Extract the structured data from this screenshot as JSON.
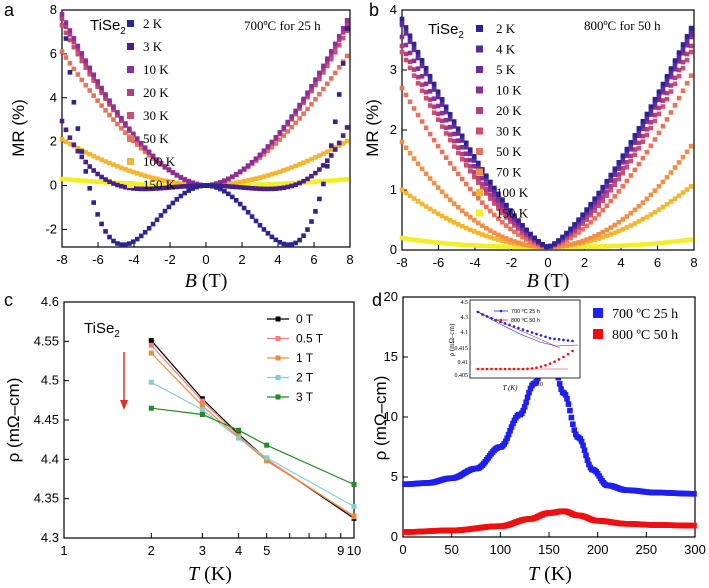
{
  "colors": {
    "mr_2K": "#2b2494",
    "mr_3K": "#4b1f8a",
    "mr_4K": "#5a2a97",
    "mr_5K": "#6b2a9e",
    "mr_10K": "#8c2e9a",
    "mr_20K": "#b23d7f",
    "mr_30K": "#cf4e6c",
    "mr_50K": "#e8735a",
    "mr_70K": "#f28e45",
    "mr_100K": "#f5b52c",
    "mr_150K": "#f2ef28",
    "c_0T": "#000000",
    "c_05T": "#f08080",
    "c_1T": "#f08a32",
    "c_2T": "#86cdd0",
    "c_3T": "#228b22",
    "d_700": "#1f1ff2",
    "d_800": "#ee1010",
    "inset_800_line": "#d0302a",
    "arrow": "#e03020"
  },
  "panels": {
    "a": {
      "letter": "a",
      "label": "TiSe",
      "sub": "2",
      "condition": "700ºC for 25 h",
      "legend": [
        "2 K",
        "3 K",
        "10 K",
        "20 K",
        "30 K",
        "50 K",
        "100 K",
        "150 K"
      ],
      "xlabel_var": "B",
      "xlabel_unit": " (T)",
      "ylabel": "MR (%)"
    },
    "b": {
      "letter": "b",
      "label": "TiSe",
      "sub": "2",
      "condition": "800ºC for 50 h",
      "legend": [
        "2 K",
        "4 K",
        "5 K",
        "10 K",
        "20 K",
        "30 K",
        "50 K",
        "70 K",
        "100 K",
        "150 K"
      ],
      "xlabel_var": "B",
      "xlabel_unit": " (T)",
      "ylabel": "MR (%)"
    },
    "c": {
      "letter": "c",
      "label": "TiSe",
      "sub": "2",
      "legend": [
        "0 T",
        "0.5 T",
        "1 T",
        "2 T",
        "3 T"
      ],
      "xlabel_var": "T",
      "xlabel_unit": " (K)",
      "ylabel": "ρ (mΩ–cm)"
    },
    "d": {
      "letter": "d",
      "legend": [
        "700 ºC 25 h",
        "800 ºC 50 h"
      ],
      "xlabel_var": "T",
      "xlabel_unit": " (K)",
      "ylabel": "ρ (mΩ–cm)",
      "inset": {
        "ylabel": "ρ (mΩ–cm)",
        "xlabel": "T (K)",
        "legend": [
          "700 ºC 25 h",
          "800 ºC 50 h"
        ],
        "ytick_labels": [
          "4.5",
          "4.3",
          "4.1",
          "0.415",
          "0.41",
          "0.405"
        ],
        "xtick_labels": [
          "10"
        ]
      }
    }
  },
  "chart_data": [
    {
      "id": "a",
      "type": "scatter",
      "title": "TiSe2 700ºC for 25 h",
      "xlabel": "B (T)",
      "ylabel": "MR (%)",
      "xlim": [
        -8,
        8
      ],
      "ylim": [
        -2.8,
        8
      ],
      "xticks": [
        -8,
        -6,
        -4,
        -2,
        0,
        2,
        4,
        6,
        8
      ],
      "yticks": [
        -2,
        0,
        2,
        4,
        6,
        8
      ],
      "series": [
        {
          "name": "2 K",
          "a2": -0.22,
          "a4": 0.005,
          "b_at_8": 8.0,
          "min_at": 4.6,
          "min": -2.45
        },
        {
          "name": "3 K",
          "at_8": 2.9,
          "min": -0.25
        },
        {
          "name": "10 K",
          "at_8": 7.8
        },
        {
          "name": "20 K",
          "at_8": 7.6
        },
        {
          "name": "30 K",
          "at_8": 7.3
        },
        {
          "name": "50 K",
          "at_8": 6.1
        },
        {
          "name": "100 K",
          "at_8": 2.1
        },
        {
          "name": "150 K",
          "at_8": 0.3
        }
      ]
    },
    {
      "id": "b",
      "type": "scatter",
      "title": "TiSe2 800ºC for 50 h",
      "xlabel": "B (T)",
      "ylabel": "MR (%)",
      "xlim": [
        -8,
        8
      ],
      "ylim": [
        0,
        4
      ],
      "xticks": [
        -8,
        -6,
        -4,
        -2,
        0,
        2,
        4,
        6,
        8
      ],
      "yticks": [
        0,
        1,
        2,
        3,
        4
      ],
      "series": [
        {
          "name": "2 K",
          "at_8": 3.8
        },
        {
          "name": "4 K",
          "at_8": 3.75
        },
        {
          "name": "5 K",
          "at_8": 3.7
        },
        {
          "name": "10 K",
          "at_8": 3.65
        },
        {
          "name": "20 K",
          "at_8": 3.5
        },
        {
          "name": "30 K",
          "at_8": 3.4
        },
        {
          "name": "50 K",
          "at_8": 3.0
        },
        {
          "name": "70 K",
          "at_8": 1.8
        },
        {
          "name": "100 K",
          "at_8": 1.1
        },
        {
          "name": "150 K",
          "at_8": 0.18
        }
      ]
    },
    {
      "id": "c",
      "type": "line",
      "title": "TiSe2",
      "xlabel": "T (K)",
      "ylabel": "ρ (mΩ–cm)",
      "xscale": "log",
      "xlim": [
        1,
        10
      ],
      "ylim": [
        4.3,
        4.6
      ],
      "xticks": [
        1,
        2,
        3,
        4,
        5,
        6,
        7,
        8,
        9,
        10
      ],
      "xtick_labels": [
        "1",
        "2",
        "3",
        "4",
        "5",
        "",
        "",
        "",
        "9",
        "10"
      ],
      "yticks": [
        4.3,
        4.35,
        4.4,
        4.45,
        4.5,
        4.55,
        4.6
      ],
      "x": [
        2,
        3,
        4,
        5,
        10
      ],
      "series": [
        {
          "name": "0 T",
          "values": [
            4.551,
            4.477,
            4.432,
            4.4,
            4.325
          ]
        },
        {
          "name": "0.5 T",
          "values": [
            4.545,
            4.474,
            4.43,
            4.4,
            4.327
          ]
        },
        {
          "name": "1 T",
          "values": [
            4.535,
            4.468,
            4.428,
            4.398,
            4.328
          ]
        },
        {
          "name": "2 T",
          "values": [
            4.498,
            4.463,
            4.427,
            4.402,
            4.34
          ]
        },
        {
          "name": "3 T",
          "values": [
            4.465,
            4.457,
            4.437,
            4.418,
            4.368
          ]
        }
      ]
    },
    {
      "id": "d",
      "type": "scatter",
      "xlabel": "T (K)",
      "ylabel": "ρ (mΩ–cm)",
      "xlim": [
        0,
        300
      ],
      "ylim": [
        0,
        20
      ],
      "xticks": [
        0,
        50,
        100,
        150,
        200,
        250,
        300
      ],
      "yticks": [
        0,
        5,
        10,
        15,
        20
      ],
      "series": [
        {
          "name": "700 ºC 25 h",
          "x": [
            2,
            25,
            50,
            75,
            100,
            120,
            135,
            145,
            150,
            155,
            165,
            180,
            195,
            210,
            230,
            260,
            300
          ],
          "values": [
            4.4,
            4.5,
            4.9,
            5.7,
            7.5,
            10.2,
            12.8,
            14.3,
            14.6,
            14.2,
            12.0,
            8.3,
            5.6,
            4.3,
            3.9,
            3.7,
            3.6
          ]
        },
        {
          "name": "800 ºC 50 h",
          "x": [
            2,
            50,
            100,
            130,
            150,
            165,
            180,
            200,
            230,
            260,
            300
          ],
          "values": [
            0.42,
            0.55,
            0.9,
            1.5,
            2.0,
            2.15,
            1.8,
            1.35,
            1.1,
            1.0,
            0.95
          ]
        }
      ]
    }
  ]
}
